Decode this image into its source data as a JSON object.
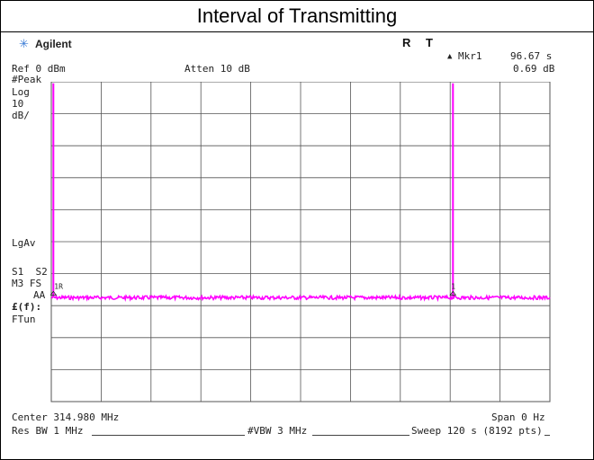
{
  "title": "Interval of Transmitting",
  "brand": {
    "name": "Agilent",
    "logo_icon": "agilent-spark-icon"
  },
  "status": {
    "r": "R",
    "t": "T"
  },
  "marker": {
    "symbol": "▲",
    "label": "Mkr1",
    "time": "96.67 s",
    "delta": "0.69 dB"
  },
  "ref_level": "Ref 0 dBm",
  "attenuation": "Atten 10 dB",
  "left_panel": {
    "peak": "#Peak",
    "log": "Log",
    "scale_value": "10",
    "scale_unit": "dB/",
    "lgav": "LgAv",
    "s1s2": "S1  S2",
    "m3fs": "M3 FS",
    "aa": "AA",
    "ef": "£(f):",
    "ftun": "FTun"
  },
  "bottom": {
    "center": "Center 314.980 MHz",
    "span": "Span 0 Hz",
    "res_bw": "Res BW 1 MHz",
    "vbw": "#VBW 3 MHz",
    "sweep": "Sweep 120 s (8192 pts)"
  },
  "trace_labels": {
    "marker_r": "1R",
    "marker_1": "1"
  },
  "colors": {
    "trace": "#ff00ff",
    "grid": "#555555",
    "text": "#222222"
  },
  "chart_data": {
    "type": "line",
    "x_unit": "s",
    "y_unit": "dB",
    "xlim": [
      0,
      120
    ],
    "y_divisions": 10,
    "x_divisions": 10,
    "series": [
      {
        "values_desc": "noise floor approximately 1 division below 6th line; spikes at 0 s and 96.67 s reaching near top"
      }
    ],
    "spikes_at_s": [
      0.5,
      96.67
    ],
    "floor_div": 6.75,
    "spike_top_div": 0.05
  }
}
